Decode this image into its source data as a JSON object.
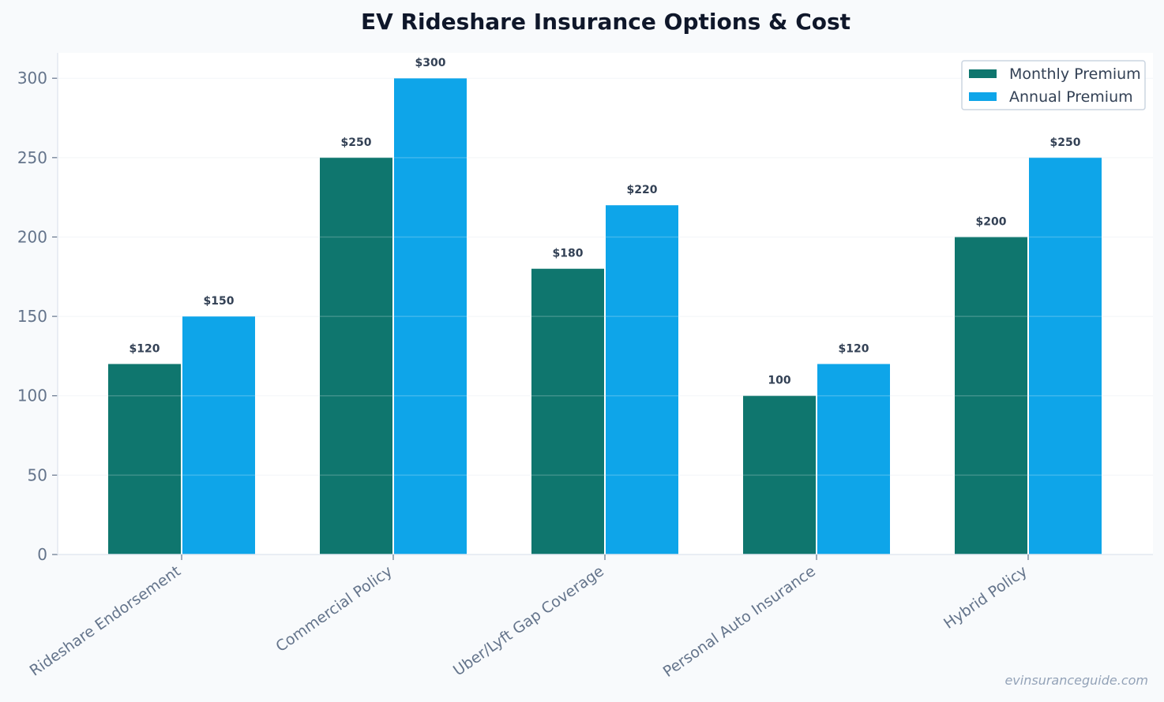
{
  "chart_data": {
    "type": "bar",
    "title": "EV Rideshare Insurance Options & Cost",
    "xlabel": "",
    "ylabel": "",
    "categories": [
      "Rideshare Endorsement",
      "Commercial Policy",
      "Uber/Lyft Gap Coverage",
      "Personal Auto Insurance",
      "Hybrid Policy"
    ],
    "series": [
      {
        "name": "Monthly Premium",
        "color": "#0f766e",
        "values": [
          120,
          250,
          180,
          100,
          200
        ],
        "labels": [
          "$120",
          "$250",
          "$180",
          "100",
          "$200"
        ]
      },
      {
        "name": "Annual Premium",
        "color": "#0ea5e9",
        "values": [
          150,
          300,
          220,
          120,
          250
        ],
        "labels": [
          "$150",
          "$300",
          "$220",
          "$120",
          "$250"
        ]
      }
    ],
    "ylim": [
      0,
      316
    ],
    "yticks": [
      0,
      50,
      100,
      150,
      200,
      250,
      300
    ],
    "grid": true,
    "legend": "top-right"
  },
  "watermark": "evinsuranceguide.com"
}
